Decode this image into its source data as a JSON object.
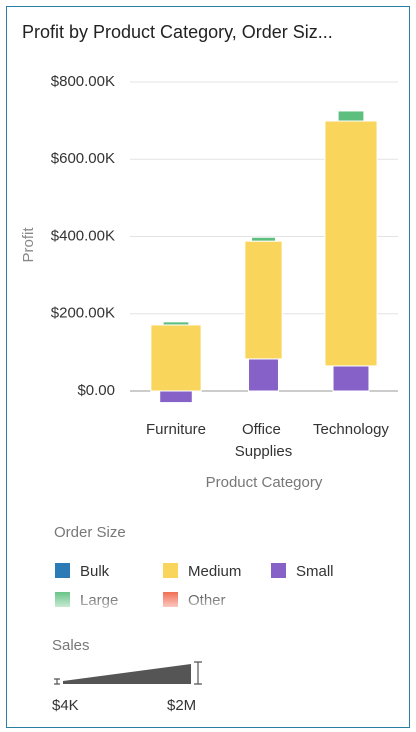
{
  "chart_data": {
    "type": "bar",
    "title": "Profit by Product Category, Order Siz...",
    "x_label": "Product Category",
    "y_label": "Profit",
    "categories": [
      "Furniture",
      "Office Supplies",
      "Technology"
    ],
    "legend_title": "Order Size",
    "series": [
      {
        "name": "Bulk",
        "color": "#2d7bb6",
        "values": [
          null,
          null,
          null
        ],
        "sales": [
          null,
          null,
          null
        ]
      },
      {
        "name": "Large",
        "color": "#5cbf7d",
        "values": [
          8000,
          10000,
          26000
        ],
        "sales": [
          840000,
          770000,
          840000
        ]
      },
      {
        "name": "Medium",
        "color": "#fad55c",
        "values": [
          171000,
          305000,
          634000
        ],
        "sales": [
          1780000,
          1280000,
          1850000
        ]
      },
      {
        "name": "Other",
        "color": "#ef6346",
        "values": [
          null,
          null,
          null
        ],
        "sales": [
          null,
          null,
          null
        ]
      },
      {
        "name": "Small",
        "color": "#8561c8",
        "values": [
          -30000,
          83000,
          65000
        ],
        "sales": [
          1100000,
          1000000,
          1230000
        ]
      }
    ],
    "ylim": [
      -30000,
      800000
    ],
    "yticks": [
      {
        "value": 0,
        "label": "$0.00"
      },
      {
        "value": 200000,
        "label": "$200.00K"
      },
      {
        "value": 400000,
        "label": "$400.00K"
      },
      {
        "value": 600000,
        "label": "$600.00K"
      },
      {
        "value": 800000,
        "label": "$800.00K"
      }
    ],
    "grid": true,
    "size_legend": {
      "title": "Sales",
      "min": {
        "value": 4000,
        "label": "$4K"
      },
      "max": {
        "value": 2000000,
        "label": "$2M"
      }
    }
  }
}
